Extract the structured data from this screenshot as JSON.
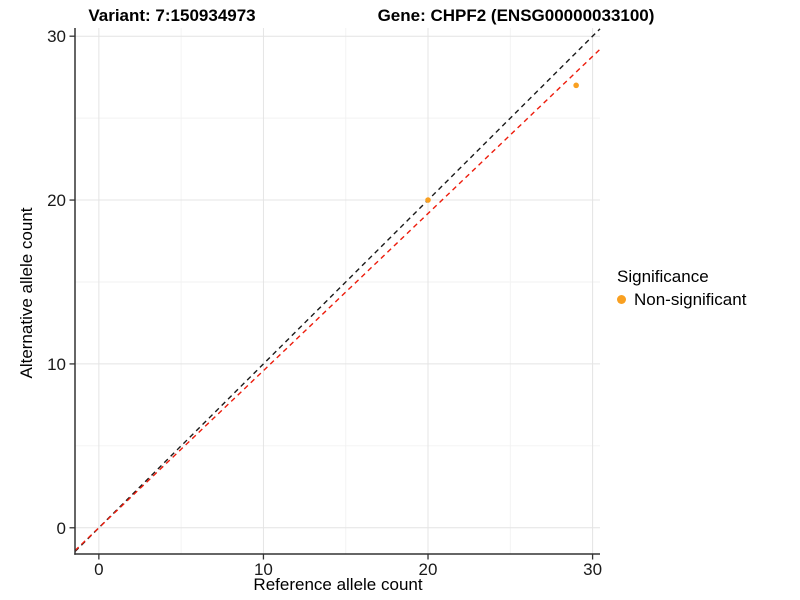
{
  "header": {
    "variant_title": "Variant: 7:150934973",
    "gene_title": "Gene: CHPF2 (ENSG00000033100)"
  },
  "legend": {
    "title": "Significance",
    "items": [
      {
        "label": "Non-significant",
        "color": "#f9a021"
      }
    ]
  },
  "chart_data": {
    "type": "scatter",
    "title": "Variant: 7:150934973 — Gene: CHPF2 (ENSG00000033100)",
    "xlabel": "Reference allele count",
    "ylabel": "Alternative allele count",
    "xlim": [
      -1.45,
      30.45
    ],
    "ylim": [
      -1.6,
      30.5
    ],
    "x_ticks": [
      0,
      10,
      20,
      30
    ],
    "y_ticks": [
      0,
      10,
      20,
      30
    ],
    "x_minor_ticks": [
      5,
      15,
      25
    ],
    "y_minor_ticks": [
      5,
      15,
      25
    ],
    "grid": true,
    "legend_position": "right",
    "series": [
      {
        "name": "Non-significant",
        "color": "#f9a021",
        "point_radius": 2.8,
        "points": [
          {
            "x": 20,
            "y": 20
          },
          {
            "x": 29,
            "y": 27
          }
        ]
      }
    ],
    "lines": [
      {
        "name": "identity",
        "slope": 1,
        "intercept": 0,
        "style": "dashed",
        "color": "#1a1a1a"
      },
      {
        "name": "fitted-ratio",
        "slope": 0.959,
        "intercept": 0,
        "style": "dashed",
        "color": "#ed1c0c"
      }
    ],
    "colors": {
      "grid_major": "#e4e4e4",
      "grid_minor": "#f2f2f2",
      "axis": "#333333",
      "tick_label": "#1a1a1a"
    }
  }
}
